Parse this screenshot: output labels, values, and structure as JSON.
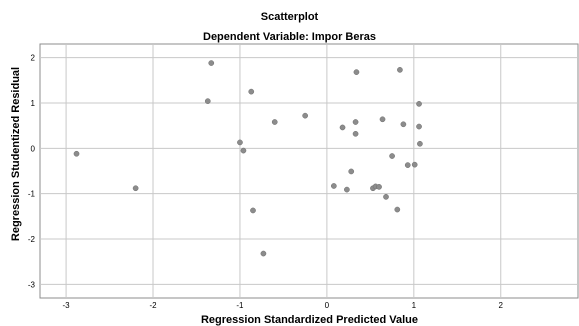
{
  "chart_data": {
    "type": "scatter",
    "title": "Scatterplot",
    "subtitle": "Dependent Variable: Impor Beras",
    "xlabel": "Regression Standardized Predicted Value",
    "ylabel": "Regression Studentized Residual",
    "xlim": [
      -3.3,
      2.9
    ],
    "ylim": [
      -3.3,
      2.3
    ],
    "xticks": [
      "-3",
      "-2",
      "-1",
      "0",
      "1",
      "2"
    ],
    "yticks": [
      "2",
      "1",
      "0",
      "-1",
      "-2",
      "-3"
    ],
    "grid": true,
    "point_color": "#8c8c8c",
    "points": [
      {
        "x": -2.88,
        "y": -0.12
      },
      {
        "x": -2.2,
        "y": -0.88
      },
      {
        "x": -1.33,
        "y": 1.88
      },
      {
        "x": -1.37,
        "y": 1.04
      },
      {
        "x": -0.87,
        "y": 1.25
      },
      {
        "x": -1.0,
        "y": 0.13
      },
      {
        "x": -0.96,
        "y": -0.05
      },
      {
        "x": -0.6,
        "y": 0.58
      },
      {
        "x": -0.85,
        "y": -1.37
      },
      {
        "x": -0.73,
        "y": -2.32
      },
      {
        "x": -0.25,
        "y": 0.72
      },
      {
        "x": 0.34,
        "y": 1.68
      },
      {
        "x": 0.84,
        "y": 1.73
      },
      {
        "x": 0.33,
        "y": 0.58
      },
      {
        "x": 0.33,
        "y": 0.32
      },
      {
        "x": 0.18,
        "y": 0.46
      },
      {
        "x": 0.64,
        "y": 0.64
      },
      {
        "x": 0.88,
        "y": 0.53
      },
      {
        "x": 1.06,
        "y": 0.98
      },
      {
        "x": 1.06,
        "y": 0.48
      },
      {
        "x": 1.07,
        "y": 0.1
      },
      {
        "x": 0.75,
        "y": -0.17
      },
      {
        "x": 0.93,
        "y": -0.37
      },
      {
        "x": 1.01,
        "y": -0.36
      },
      {
        "x": 0.28,
        "y": -0.51
      },
      {
        "x": 0.08,
        "y": -0.83
      },
      {
        "x": 0.23,
        "y": -0.91
      },
      {
        "x": 0.53,
        "y": -0.88
      },
      {
        "x": 0.56,
        "y": -0.84
      },
      {
        "x": 0.6,
        "y": -0.85
      },
      {
        "x": 0.68,
        "y": -1.07
      },
      {
        "x": 0.81,
        "y": -1.35
      }
    ]
  }
}
